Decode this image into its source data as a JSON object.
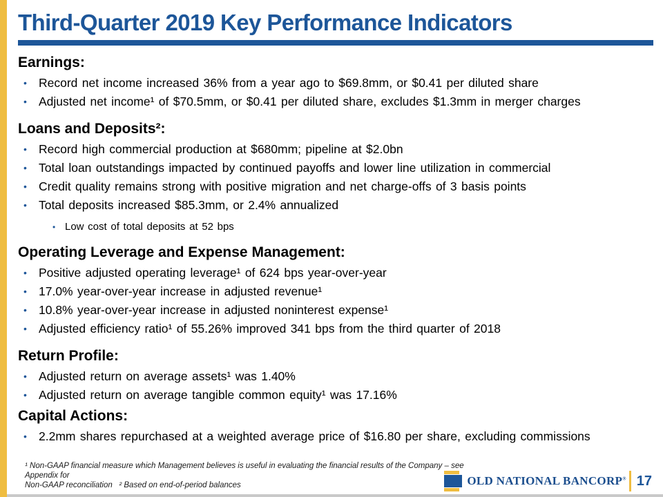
{
  "colors": {
    "accent_blue": "#1D5699",
    "accent_gold": "#EFBD41",
    "bottom_strip_gray": "#C9C9C9"
  },
  "glyphs": {
    "bullet": "•"
  },
  "slide": {
    "title": "Third-Quarter 2019 Key Performance Indicators"
  },
  "sections": [
    {
      "heading": "Earnings:",
      "bullets": [
        {
          "text": "Record net income increased 36% from a year ago to $69.8mm, or $0.41 per diluted share"
        },
        {
          "text": "Adjusted net income¹ of $70.5mm, or $0.41 per diluted share, excludes $1.3mm in merger charges"
        }
      ]
    },
    {
      "heading": "Loans and Deposits²:",
      "bullets": [
        {
          "text": "Record high commercial production at $680mm; pipeline at $2.0bn"
        },
        {
          "text": "Total loan outstandings impacted by continued payoffs and lower line utilization in commercial"
        },
        {
          "text": "Credit quality remains strong with positive migration and net charge-offs of 3 basis points"
        },
        {
          "text": "Total deposits increased $85.3mm, or 2.4% annualized"
        }
      ],
      "sub_bullets": [
        {
          "text": "Low cost of total deposits at 52 bps"
        }
      ]
    },
    {
      "heading": "Operating Leverage and Expense Management:",
      "bullets": [
        {
          "text": "Positive adjusted operating leverage¹ of 624 bps year-over-year"
        },
        {
          "text": "17.0% year-over-year increase in adjusted revenue¹"
        },
        {
          "text": "10.8% year-over-year increase in adjusted noninterest expense¹"
        },
        {
          "text": "Adjusted efficiency ratio¹ of 55.26% improved 341 bps from the third quarter of 2018"
        }
      ]
    },
    {
      "heading": "Return Profile:",
      "bullets": [
        {
          "text": "Adjusted return on average assets¹ was 1.40%"
        },
        {
          "text": "Adjusted return on average tangible common equity¹ was 17.16%"
        }
      ]
    },
    {
      "heading": "Capital Actions:",
      "bullets": [
        {
          "text": "2.2mm shares repurchased at a weighted average price of $16.80 per share, excluding commissions"
        }
      ]
    }
  ],
  "footer": {
    "footnote_line1": "¹ Non-GAAP financial measure which Management believes is useful in evaluating the financial results of the Company – see Appendix for",
    "footnote_line2": "Non-GAAP reconciliation   ² Based on end-of-period balances",
    "logo_text": "OLD NATIONAL BANCORP",
    "logo_reg": "®",
    "page_number": "17"
  }
}
